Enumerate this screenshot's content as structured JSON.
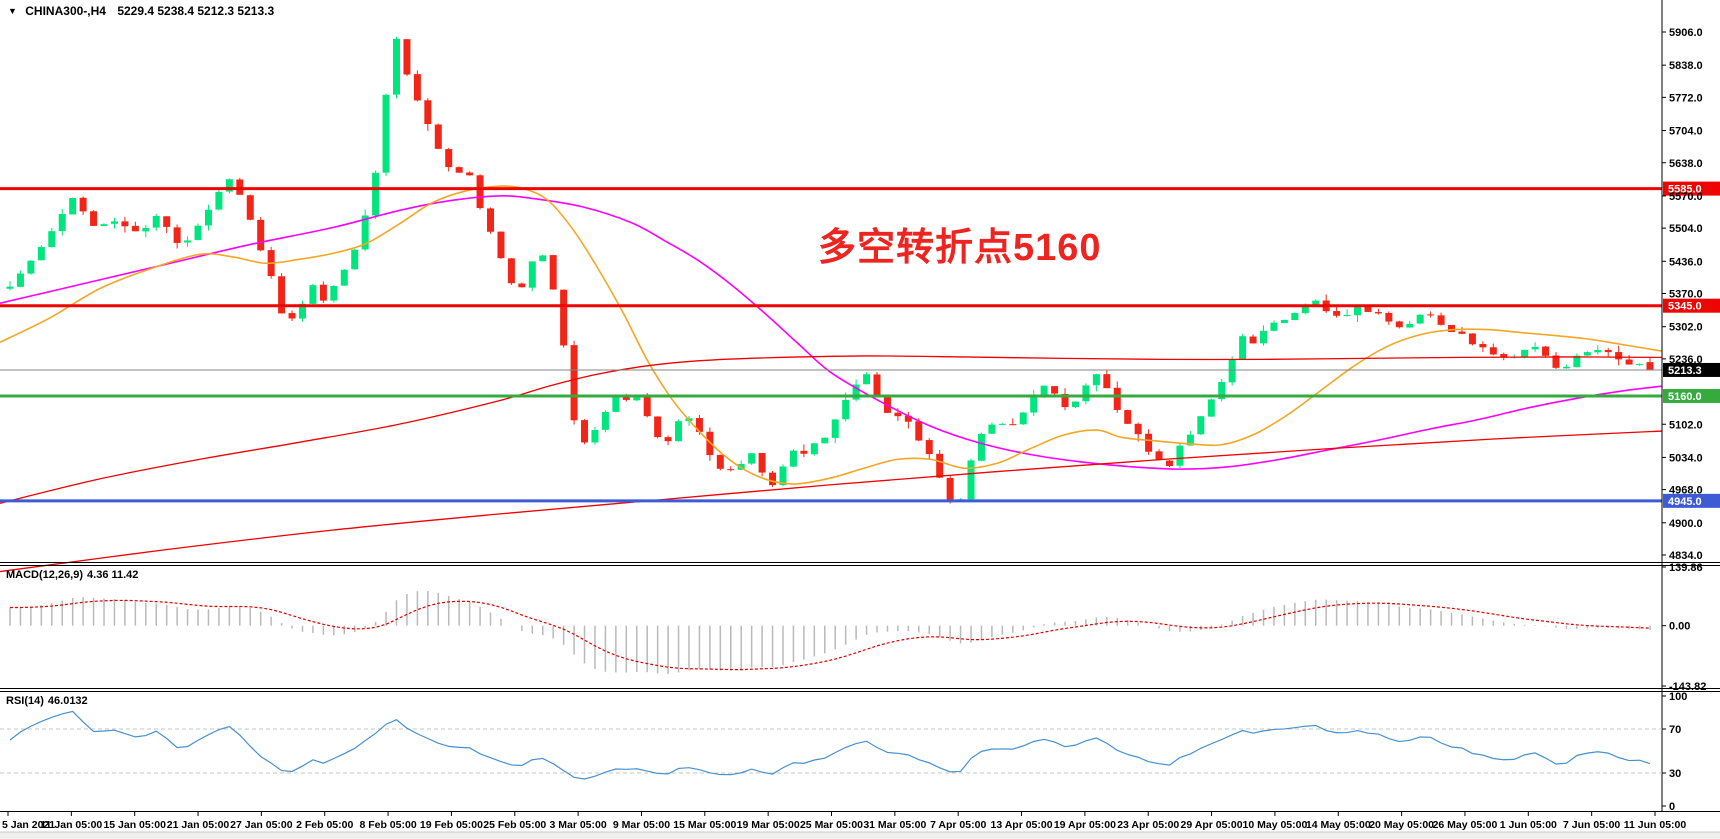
{
  "header": {
    "collapse_icon": "▼",
    "symbol": "CHINA300-,H4",
    "ohlc_text": "5229.4 5238.4 5212.3 5213.3"
  },
  "annotation": {
    "text": "多空转折点5160",
    "color": "#ec2521"
  },
  "chart_data": {
    "type": "candlestick",
    "symbol": "CHINA300-",
    "timeframe": "H4",
    "ohlc_display": {
      "open": 5229.4,
      "high": 5238.4,
      "low": 5212.3,
      "close": 5213.3
    },
    "current_price": 5213.3,
    "up_color": "#00e57d",
    "down_color": "#f22618",
    "price_axis": {
      "ticks": [
        5906.0,
        5838.0,
        5772.0,
        5704.0,
        5638.0,
        5570.0,
        5504.0,
        5436.0,
        5370.0,
        5302.0,
        5236.0,
        5102.0,
        5034.0,
        4968.0,
        4900.0,
        4834.0
      ],
      "min": 4834.0,
      "max": 5906.0
    },
    "time_axis": {
      "labels": [
        "5 Jan 2021",
        "11 Jan 05:00",
        "15 Jan 05:00",
        "21 Jan 05:00",
        "27 Jan 05:00",
        "2 Feb 05:00",
        "8 Feb 05:00",
        "19 Feb 05:00",
        "25 Feb 05:00",
        "3 Mar 05:00",
        "9 Mar 05:00",
        "15 Mar 05:00",
        "19 Mar 05:00",
        "25 Mar 05:00",
        "31 Mar 05:00",
        "7 Apr 05:00",
        "13 Apr 05:00",
        "19 Apr 05:00",
        "23 Apr 05:00",
        "29 Apr 05:00",
        "10 May 05:00",
        "14 May 05:00",
        "20 May 05:00",
        "26 May 05:00",
        "1 Jun 05:00",
        "7 Jun 05:00",
        "11 Jun 05:00"
      ]
    },
    "hlines": [
      {
        "name": "resistance-5585",
        "price": 5585.0,
        "label": "5585.0",
        "color": "#ee0400",
        "width": 3,
        "label_bg": "#ee0400",
        "label_fg": "#ffffff"
      },
      {
        "name": "resistance-5345",
        "price": 5345.0,
        "label": "5345.0",
        "color": "#ee0400",
        "width": 3,
        "label_bg": "#ee0400",
        "label_fg": "#ffffff"
      },
      {
        "name": "current-price",
        "price": 5213.3,
        "label": "5213.3",
        "color": "#848484",
        "width": 1,
        "label_bg": "#000000",
        "label_fg": "#ffffff"
      },
      {
        "name": "pivot-5160",
        "price": 5160.0,
        "label": "5160.0",
        "color": "#35ab3d",
        "width": 3,
        "label_bg": "#35ab3d",
        "label_fg": "#ffffff"
      },
      {
        "name": "support-4945",
        "price": 4945.0,
        "label": "4945.0",
        "color": "#3d5bd5",
        "width": 3,
        "label_bg": "#3d5bd5",
        "label_fg": "#ffffff"
      }
    ],
    "close_path": [
      [
        0,
        5390
      ],
      [
        0.012,
        5430
      ],
      [
        0.027,
        5510
      ],
      [
        0.04,
        5570
      ],
      [
        0.052,
        5500
      ],
      [
        0.067,
        5520
      ],
      [
        0.079,
        5490
      ],
      [
        0.091,
        5535
      ],
      [
        0.104,
        5460
      ],
      [
        0.116,
        5520
      ],
      [
        0.128,
        5580
      ],
      [
        0.135,
        5605
      ],
      [
        0.143,
        5560
      ],
      [
        0.151,
        5480
      ],
      [
        0.16,
        5395
      ],
      [
        0.168,
        5300
      ],
      [
        0.176,
        5330
      ],
      [
        0.183,
        5395
      ],
      [
        0.192,
        5350
      ],
      [
        0.201,
        5400
      ],
      [
        0.21,
        5455
      ],
      [
        0.218,
        5540
      ],
      [
        0.226,
        5670
      ],
      [
        0.232,
        5860
      ],
      [
        0.235,
        5905
      ],
      [
        0.24,
        5840
      ],
      [
        0.245,
        5775
      ],
      [
        0.251,
        5750
      ],
      [
        0.257,
        5690
      ],
      [
        0.263,
        5650
      ],
      [
        0.27,
        5610
      ],
      [
        0.276,
        5630
      ],
      [
        0.282,
        5600
      ],
      [
        0.288,
        5530
      ],
      [
        0.296,
        5470
      ],
      [
        0.304,
        5395
      ],
      [
        0.311,
        5370
      ],
      [
        0.318,
        5430
      ],
      [
        0.326,
        5450
      ],
      [
        0.333,
        5350
      ],
      [
        0.339,
        5230
      ],
      [
        0.345,
        5080
      ],
      [
        0.351,
        5060
      ],
      [
        0.357,
        5095
      ],
      [
        0.363,
        5130
      ],
      [
        0.371,
        5170
      ],
      [
        0.378,
        5145
      ],
      [
        0.385,
        5155
      ],
      [
        0.393,
        5080
      ],
      [
        0.4,
        5065
      ],
      [
        0.407,
        5110
      ],
      [
        0.415,
        5120
      ],
      [
        0.422,
        5075
      ],
      [
        0.429,
        5020
      ],
      [
        0.437,
        4998
      ],
      [
        0.444,
        5015
      ],
      [
        0.451,
        5050
      ],
      [
        0.457,
        5025
      ],
      [
        0.463,
        4965
      ],
      [
        0.471,
        5010
      ],
      [
        0.478,
        5055
      ],
      [
        0.485,
        5045
      ],
      [
        0.493,
        5065
      ],
      [
        0.5,
        5090
      ],
      [
        0.507,
        5140
      ],
      [
        0.516,
        5180
      ],
      [
        0.523,
        5210
      ],
      [
        0.53,
        5150
      ],
      [
        0.538,
        5120
      ],
      [
        0.545,
        5125
      ],
      [
        0.552,
        5080
      ],
      [
        0.56,
        5045
      ],
      [
        0.567,
        4990
      ],
      [
        0.574,
        4935
      ],
      [
        0.58,
        4950
      ],
      [
        0.587,
        5040
      ],
      [
        0.594,
        5090
      ],
      [
        0.601,
        5110
      ],
      [
        0.61,
        5095
      ],
      [
        0.619,
        5135
      ],
      [
        0.628,
        5190
      ],
      [
        0.637,
        5160
      ],
      [
        0.646,
        5120
      ],
      [
        0.655,
        5180
      ],
      [
        0.665,
        5210
      ],
      [
        0.672,
        5150
      ],
      [
        0.68,
        5110
      ],
      [
        0.689,
        5080
      ],
      [
        0.698,
        5030
      ],
      [
        0.706,
        5015
      ],
      [
        0.713,
        5060
      ],
      [
        0.723,
        5095
      ],
      [
        0.732,
        5150
      ],
      [
        0.741,
        5200
      ],
      [
        0.75,
        5285
      ],
      [
        0.759,
        5270
      ],
      [
        0.768,
        5300
      ],
      [
        0.777,
        5320
      ],
      [
        0.787,
        5335
      ],
      [
        0.795,
        5360
      ],
      [
        0.802,
        5335
      ],
      [
        0.811,
        5320
      ],
      [
        0.82,
        5345
      ],
      [
        0.829,
        5330
      ],
      [
        0.838,
        5325
      ],
      [
        0.848,
        5300
      ],
      [
        0.857,
        5320
      ],
      [
        0.866,
        5330
      ],
      [
        0.875,
        5300
      ],
      [
        0.884,
        5290
      ],
      [
        0.893,
        5265
      ],
      [
        0.902,
        5250
      ],
      [
        0.911,
        5235
      ],
      [
        0.921,
        5245
      ],
      [
        0.93,
        5260
      ],
      [
        0.939,
        5230
      ],
      [
        0.946,
        5205
      ],
      [
        0.954,
        5240
      ],
      [
        0.963,
        5250
      ],
      [
        0.972,
        5260
      ],
      [
        0.982,
        5235
      ],
      [
        0.991,
        5225
      ],
      [
        1,
        5213.3
      ]
    ],
    "moving_averages": [
      {
        "name": "ma-magenta",
        "color": "#ff00ff",
        "width": 1.6,
        "points": [
          [
            0,
            5350
          ],
          [
            0.05,
            5390
          ],
          [
            0.1,
            5430
          ],
          [
            0.15,
            5470
          ],
          [
            0.2,
            5505
          ],
          [
            0.24,
            5540
          ],
          [
            0.27,
            5560
          ],
          [
            0.3,
            5570
          ],
          [
            0.32,
            5565
          ],
          [
            0.35,
            5548
          ],
          [
            0.38,
            5515
          ],
          [
            0.4,
            5478
          ],
          [
            0.42,
            5438
          ],
          [
            0.44,
            5388
          ],
          [
            0.46,
            5330
          ],
          [
            0.48,
            5268
          ],
          [
            0.5,
            5208
          ],
          [
            0.53,
            5148
          ],
          [
            0.56,
            5098
          ],
          [
            0.59,
            5063
          ],
          [
            0.62,
            5040
          ],
          [
            0.65,
            5025
          ],
          [
            0.68,
            5015
          ],
          [
            0.71,
            5010
          ],
          [
            0.74,
            5015
          ],
          [
            0.77,
            5030
          ],
          [
            0.8,
            5050
          ],
          [
            0.83,
            5070
          ],
          [
            0.86,
            5092
          ],
          [
            0.89,
            5112
          ],
          [
            0.92,
            5136
          ],
          [
            0.95,
            5156
          ],
          [
            0.98,
            5172
          ],
          [
            1,
            5180
          ]
        ]
      },
      {
        "name": "ma-orange",
        "color": "#f5a623",
        "width": 1.6,
        "points": [
          [
            0,
            5270
          ],
          [
            0.03,
            5320
          ],
          [
            0.06,
            5380
          ],
          [
            0.09,
            5420
          ],
          [
            0.12,
            5450
          ],
          [
            0.14,
            5445
          ],
          [
            0.16,
            5432
          ],
          [
            0.18,
            5440
          ],
          [
            0.2,
            5452
          ],
          [
            0.22,
            5472
          ],
          [
            0.24,
            5512
          ],
          [
            0.26,
            5556
          ],
          [
            0.28,
            5580
          ],
          [
            0.3,
            5590
          ],
          [
            0.315,
            5585
          ],
          [
            0.33,
            5560
          ],
          [
            0.345,
            5500
          ],
          [
            0.36,
            5420
          ],
          [
            0.375,
            5330
          ],
          [
            0.39,
            5230
          ],
          [
            0.405,
            5150
          ],
          [
            0.42,
            5090
          ],
          [
            0.435,
            5040
          ],
          [
            0.45,
            5005
          ],
          [
            0.465,
            4985
          ],
          [
            0.48,
            4980
          ],
          [
            0.5,
            4992
          ],
          [
            0.52,
            5012
          ],
          [
            0.54,
            5030
          ],
          [
            0.56,
            5030
          ],
          [
            0.58,
            5012
          ],
          [
            0.6,
            5022
          ],
          [
            0.62,
            5052
          ],
          [
            0.64,
            5080
          ],
          [
            0.66,
            5090
          ],
          [
            0.675,
            5075
          ],
          [
            0.695,
            5068
          ],
          [
            0.715,
            5062
          ],
          [
            0.735,
            5060
          ],
          [
            0.755,
            5082
          ],
          [
            0.775,
            5122
          ],
          [
            0.795,
            5172
          ],
          [
            0.815,
            5222
          ],
          [
            0.835,
            5262
          ],
          [
            0.855,
            5286
          ],
          [
            0.875,
            5296
          ],
          [
            0.895,
            5296
          ],
          [
            0.915,
            5290
          ],
          [
            0.935,
            5284
          ],
          [
            0.955,
            5277
          ],
          [
            0.975,
            5266
          ],
          [
            1,
            5252
          ]
        ]
      },
      {
        "name": "ma-red-slow",
        "color": "#f20000",
        "width": 1.3,
        "points": [
          [
            0,
            4940
          ],
          [
            0.06,
            4990
          ],
          [
            0.12,
            5030
          ],
          [
            0.18,
            5065
          ],
          [
            0.24,
            5102
          ],
          [
            0.3,
            5150
          ],
          [
            0.33,
            5180
          ],
          [
            0.36,
            5205
          ],
          [
            0.39,
            5222
          ],
          [
            0.42,
            5232
          ],
          [
            0.46,
            5238
          ],
          [
            0.52,
            5242
          ],
          [
            0.58,
            5240
          ],
          [
            0.64,
            5237
          ],
          [
            0.7,
            5235
          ],
          [
            0.76,
            5235
          ],
          [
            0.82,
            5237
          ],
          [
            0.88,
            5239
          ],
          [
            0.94,
            5240
          ],
          [
            1,
            5239
          ]
        ]
      },
      {
        "name": "ma-red-long",
        "color": "#f20000",
        "width": 1.3,
        "points": [
          [
            0,
            4800
          ],
          [
            0.1,
            4845
          ],
          [
            0.2,
            4885
          ],
          [
            0.3,
            4918
          ],
          [
            0.4,
            4948
          ],
          [
            0.5,
            4978
          ],
          [
            0.6,
            5005
          ],
          [
            0.7,
            5030
          ],
          [
            0.8,
            5052
          ],
          [
            0.9,
            5072
          ],
          [
            1,
            5088
          ]
        ]
      }
    ],
    "indicators": {
      "macd": {
        "label": "MACD(12,26,9)",
        "value_text": "4.36 11.42",
        "params": [
          12,
          26,
          9
        ],
        "axis_ticks": [
          139.86,
          0.0,
          -143.82
        ],
        "histogram_color": "#b9b9b9",
        "signal_color": "#e00000"
      },
      "rsi": {
        "label": "RSI(14)",
        "value_text": "46.0132",
        "period": 14,
        "levels": [
          70,
          30
        ],
        "axis_ticks": [
          100,
          70,
          30,
          0
        ],
        "line_color": "#4690d0"
      }
    }
  }
}
